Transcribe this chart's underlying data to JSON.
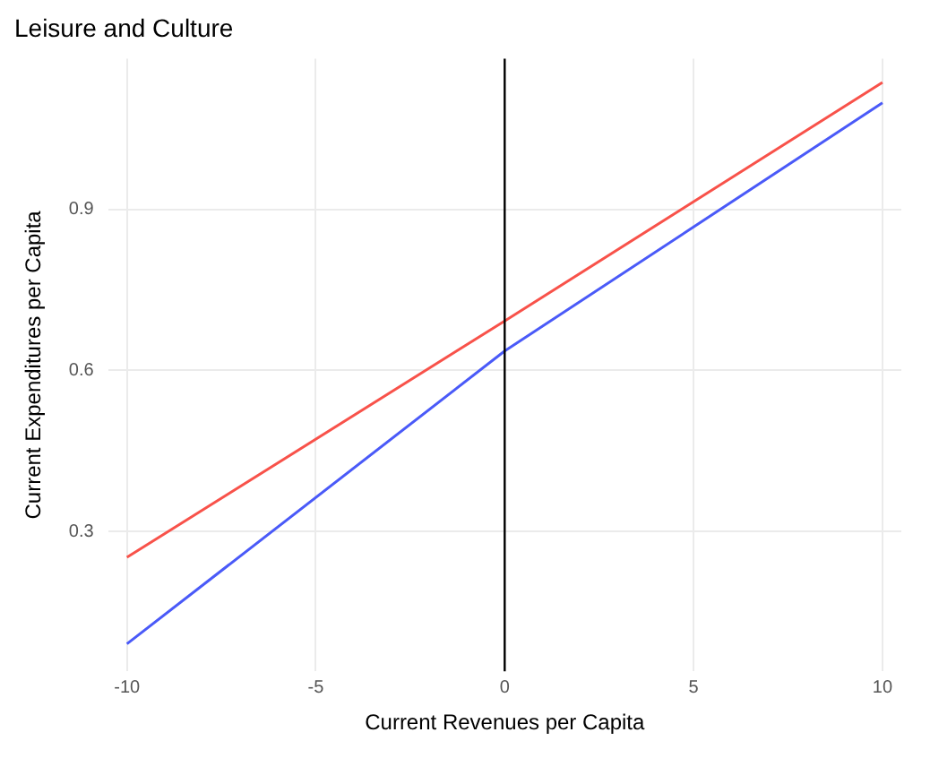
{
  "chart_data": {
    "type": "line",
    "title": "Leisure and Culture",
    "xlabel": "Current Revenues per Capita",
    "ylabel": "Current Expenditures per Capita",
    "series": [
      {
        "x": [
          -10,
          0,
          10
        ],
        "values": [
          0.252,
          0.692,
          1.136
        ],
        "color": "#f8524a"
      },
      {
        "x": [
          -10,
          0,
          10
        ],
        "values": [
          0.091,
          0.636,
          1.098
        ],
        "color": "#4a5af8"
      }
    ],
    "xlim": [
      -10.5,
      10.5
    ],
    "xticks": [
      -10,
      -5,
      0,
      5,
      10
    ],
    "ylim": [
      0.04,
      1.18
    ],
    "yticks": [
      0.3,
      0.6,
      0.9
    ],
    "ref_lines": [
      {
        "axis": "x",
        "value": 0,
        "color": "#000000"
      }
    ],
    "grid": true,
    "legend": false,
    "marker": "none",
    "line_style": "solid"
  }
}
